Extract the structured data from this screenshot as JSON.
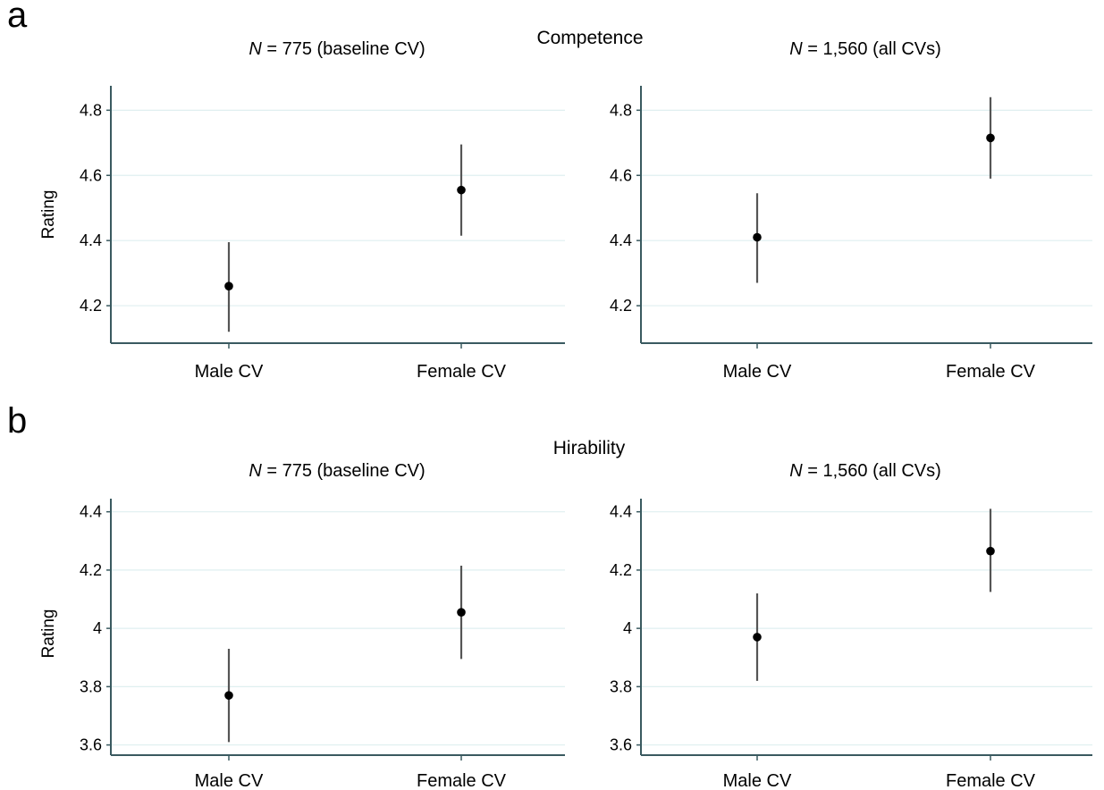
{
  "chart_data": [
    {
      "type": "scatter",
      "panel_label": "a",
      "section_title": "Competence",
      "title_prefix": "N",
      "title_suffix": " = 775 (baseline CV)",
      "xlabel": "",
      "ylabel": "Rating",
      "categories": [
        "Male CV",
        "Female CV"
      ],
      "values": [
        4.26,
        4.555
      ],
      "ci_low": [
        4.12,
        4.415
      ],
      "ci_high": [
        4.395,
        4.695
      ],
      "ylim": [
        4.085,
        4.875
      ],
      "yticks": [
        "4.2",
        "4.4",
        "4.6",
        "4.8"
      ],
      "grid": true
    },
    {
      "type": "scatter",
      "panel_label": "",
      "section_title": "",
      "title_prefix": "N",
      "title_suffix": " = 1,560 (all CVs)",
      "xlabel": "",
      "ylabel": "",
      "categories": [
        "Male CV",
        "Female CV"
      ],
      "values": [
        4.41,
        4.715
      ],
      "ci_low": [
        4.27,
        4.59
      ],
      "ci_high": [
        4.545,
        4.84
      ],
      "ylim": [
        4.085,
        4.875
      ],
      "yticks": [
        "4.2",
        "4.4",
        "4.6",
        "4.8"
      ],
      "grid": true
    },
    {
      "type": "scatter",
      "panel_label": "b",
      "section_title": "Hirability",
      "title_prefix": "N",
      "title_suffix": " = 775 (baseline CV)",
      "xlabel": "",
      "ylabel": "Rating",
      "categories": [
        "Male CV",
        "Female CV"
      ],
      "values": [
        3.77,
        4.055
      ],
      "ci_low": [
        3.61,
        3.895
      ],
      "ci_high": [
        3.93,
        4.215
      ],
      "ylim": [
        3.565,
        4.445
      ],
      "yticks": [
        "3.6",
        "3.8",
        "4",
        "4.2",
        "4.4"
      ],
      "grid": true
    },
    {
      "type": "scatter",
      "panel_label": "",
      "section_title": "",
      "title_prefix": "N",
      "title_suffix": " = 1,560 (all CVs)",
      "xlabel": "",
      "ylabel": "",
      "categories": [
        "Male CV",
        "Female CV"
      ],
      "values": [
        3.97,
        4.265
      ],
      "ci_low": [
        3.82,
        4.125
      ],
      "ci_high": [
        4.12,
        4.41
      ],
      "ylim": [
        3.565,
        4.445
      ],
      "yticks": [
        "3.6",
        "3.8",
        "4",
        "4.2",
        "4.4"
      ],
      "grid": true
    }
  ],
  "colors": {
    "axis": "#3a5a60",
    "grid": "#dfeff0",
    "point": "#000000",
    "errorbar": "#555555"
  }
}
